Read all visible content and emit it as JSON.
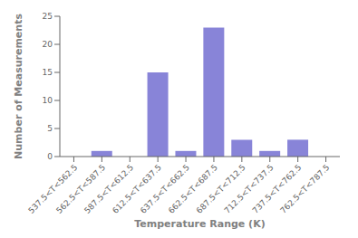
{
  "chart_data": {
    "type": "bar",
    "categories": [
      "537.5<T<562.5",
      "562.5<T<587.5",
      "587.5<T<612.5",
      "612.5<T<637.5",
      "637.5<T<662.5",
      "662.5<T<687.5",
      "687.5<T<712.5",
      "712.5<T<737.5",
      "737.5<T<762.5",
      "762.5<T<787.5"
    ],
    "values": [
      0,
      1,
      0,
      15,
      1,
      23,
      3,
      1,
      3,
      0
    ],
    "color": "#8884d8",
    "xlabel": "Temperature Range (K)",
    "ylabel": "Number of Measurements",
    "ylim": [
      0,
      25
    ],
    "yticks": [
      0,
      5,
      10,
      15,
      20,
      25
    ],
    "grid": false
  }
}
